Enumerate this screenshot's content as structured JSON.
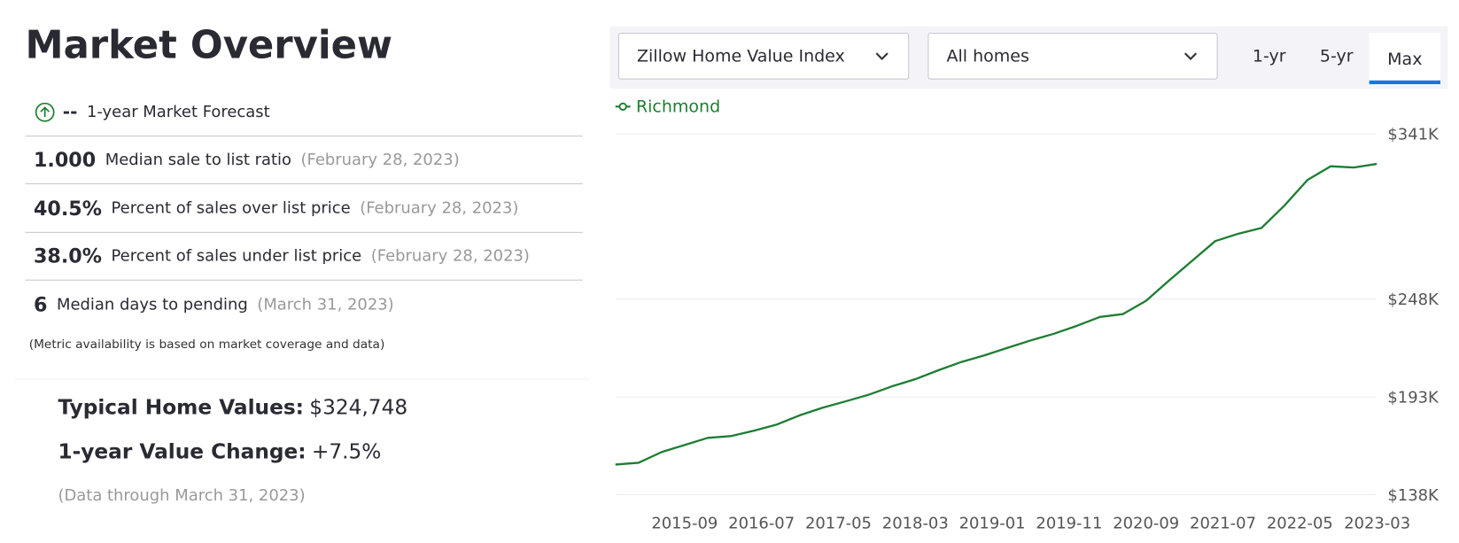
{
  "header": {
    "title": "Market Overview"
  },
  "forecast": {
    "value": "--",
    "label": "1-year Market Forecast"
  },
  "metrics": [
    {
      "value": "1.000",
      "label": "Median sale to list ratio",
      "date": "(February 28, 2023)"
    },
    {
      "value": "40.5%",
      "label": "Percent of sales over list price",
      "date": "(February 28, 2023)"
    },
    {
      "value": "38.0%",
      "label": "Percent of sales under list price",
      "date": "(February 28, 2023)"
    },
    {
      "value": "6",
      "label": "Median days to pending",
      "date": "(March 31, 2023)"
    }
  ],
  "note": "(Metric availability is based on market coverage and data)",
  "summary": {
    "typical_label": "Typical Home Values:",
    "typical_value": "$324,748",
    "change_label": "1-year Value Change:",
    "change_value": "+7.5%",
    "data_through": "(Data through March 31, 2023)"
  },
  "controls": {
    "index_select": "Zillow Home Value Index",
    "home_type_select": "All homes",
    "ranges": [
      "1-yr",
      "5-yr",
      "Max"
    ],
    "active_range": 2
  },
  "chart_data": {
    "type": "line",
    "x": [
      "2014-12",
      "2015-03",
      "2015-06",
      "2015-09",
      "2015-12",
      "2016-03",
      "2016-06",
      "2016-09",
      "2016-12",
      "2017-03",
      "2017-06",
      "2017-09",
      "2017-12",
      "2018-03",
      "2018-06",
      "2018-09",
      "2018-12",
      "2019-03",
      "2019-06",
      "2019-09",
      "2019-12",
      "2020-03",
      "2020-06",
      "2020-09",
      "2020-12",
      "2021-03",
      "2021-06",
      "2021-09",
      "2021-12",
      "2022-03",
      "2022-06",
      "2022-09",
      "2022-12",
      "2023-03"
    ],
    "series": [
      {
        "name": "Richmond",
        "color": "#1e7d32",
        "values": [
          155000,
          156000,
          162000,
          166000,
          170000,
          171000,
          174000,
          177500,
          182700,
          187000,
          190600,
          194300,
          199000,
          203000,
          208000,
          212700,
          216400,
          220600,
          224800,
          228500,
          233000,
          238000,
          239600,
          247000,
          258500,
          269600,
          280600,
          284800,
          288000,
          300600,
          315000,
          322700,
          322000,
          324000
        ]
      }
    ],
    "xlim": [
      "2014-12",
      "2023-03"
    ],
    "xticks": [
      "2015-09",
      "2016-07",
      "2017-05",
      "2018-03",
      "2019-01",
      "2019-11",
      "2020-09",
      "2021-07",
      "2022-05",
      "2023-03"
    ],
    "ylim": [
      138000,
      341000
    ],
    "yticks": [
      {
        "value": 138000,
        "label": "$138K"
      },
      {
        "value": 193000,
        "label": "$193K"
      },
      {
        "value": 248000,
        "label": "$248K"
      },
      {
        "value": 341000,
        "label": "$341K"
      }
    ],
    "grid": true
  }
}
